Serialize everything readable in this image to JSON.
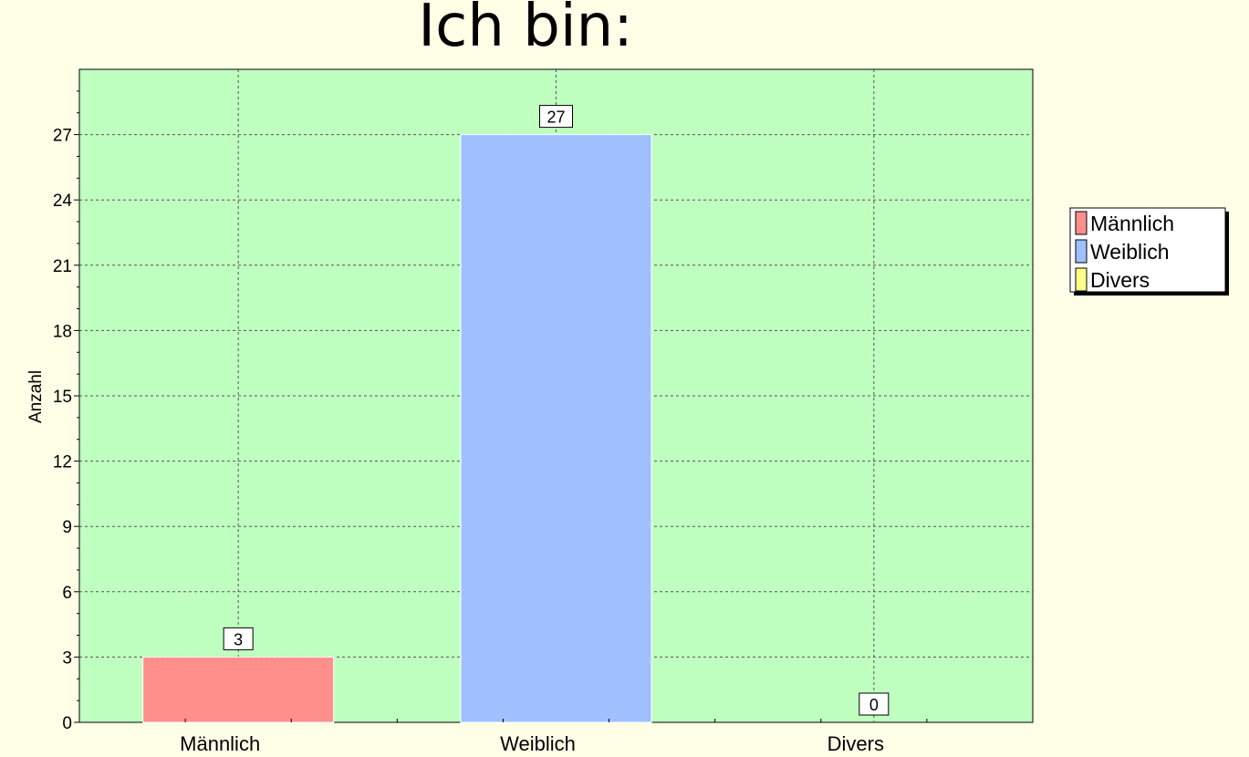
{
  "chart_data": {
    "type": "bar",
    "title": "Ich bin:",
    "ylabel": "Anzahl",
    "xlabel": "",
    "categories": [
      "Männlich",
      "Weiblich",
      "Divers"
    ],
    "values": [
      3,
      27,
      0
    ],
    "colors": [
      "#ff8f8a",
      "#a0bfff",
      "#ffff88"
    ],
    "ylim": [
      0,
      30
    ],
    "yticks": [
      0,
      3,
      6,
      9,
      12,
      15,
      18,
      21,
      24,
      27
    ],
    "grid": true,
    "plot_background": "#bfffc0",
    "legend": {
      "position": "right",
      "entries": [
        "Männlich",
        "Weiblich",
        "Divers"
      ]
    }
  }
}
